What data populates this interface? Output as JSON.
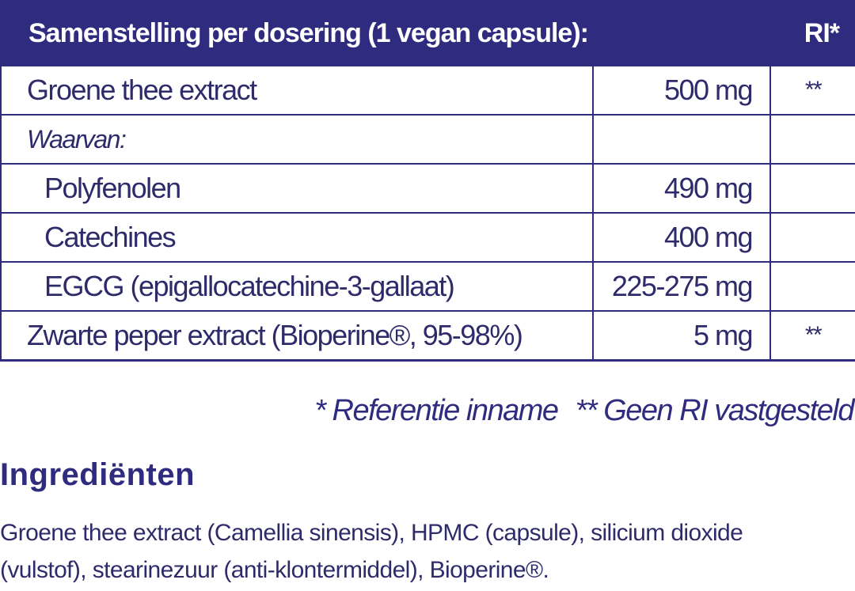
{
  "table": {
    "header_label": "Samenstelling per dosering (1 vegan capsule):",
    "header_ri": "RI*",
    "rows": [
      {
        "name": "Groene thee extract",
        "amount": "500 mg",
        "ri": "**"
      },
      {
        "name": "Waarvan:",
        "amount": "",
        "ri": ""
      },
      {
        "name": "Polyfenolen",
        "amount": "490 mg",
        "ri": ""
      },
      {
        "name": "Catechines",
        "amount": "400 mg",
        "ri": ""
      },
      {
        "name": "EGCG (epigallocatechine-3-gallaat)",
        "amount": "225-275 mg",
        "ri": ""
      },
      {
        "name": "Zwarte peper extract (Bioperine®, 95-98%)",
        "amount": "5 mg",
        "ri": "**"
      }
    ]
  },
  "footnotes": {
    "ri": "* Referentie inname",
    "no_ri": "** Geen RI vastgesteld"
  },
  "ingredients": {
    "title": "Ingrediënten",
    "text": "Groene thee extract (Camellia sinensis), HPMC (capsule), silicium dioxide (vulstof), stearinezuur (anti-klontermiddel), Bioperine®."
  },
  "colors": {
    "brand": "#2f2b7f",
    "text": "#2f2b6b"
  }
}
